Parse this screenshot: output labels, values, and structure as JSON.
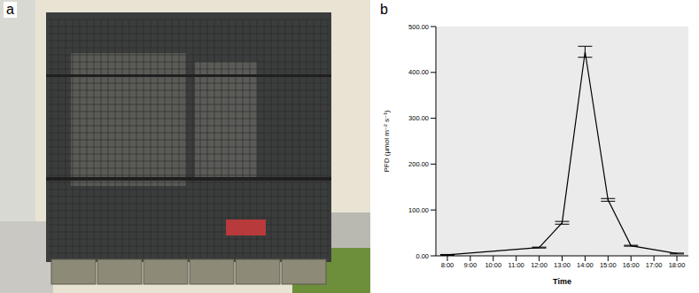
{
  "panels": [
    {
      "letter": "a"
    },
    {
      "letter": "b"
    }
  ],
  "chart_data": {
    "type": "line",
    "x_label": "Time",
    "y_label": "PFD (µmol m⁻² s⁻¹)",
    "x": [
      8,
      12,
      13,
      14,
      15,
      16,
      18
    ],
    "values": [
      2,
      18,
      72,
      445,
      122,
      22,
      5
    ],
    "errors": [
      1,
      1,
      3,
      12,
      3,
      1,
      1
    ],
    "color": "#000000",
    "marker": "none",
    "grid": false,
    "xlim": [
      7.5,
      18.5
    ],
    "xticks": [
      {
        "value": 8,
        "label": "8:00"
      },
      {
        "value": 9,
        "label": "9:00"
      },
      {
        "value": 10,
        "label": "10:00"
      },
      {
        "value": 11,
        "label": "11:00"
      },
      {
        "value": 12,
        "label": "12:00"
      },
      {
        "value": 13,
        "label": "13:00"
      },
      {
        "value": 14,
        "label": "14:00"
      },
      {
        "value": 15,
        "label": "15:00"
      },
      {
        "value": 16,
        "label": "16:00"
      },
      {
        "value": 17,
        "label": "17:00"
      },
      {
        "value": 18,
        "label": "18:00"
      }
    ],
    "ylim": [
      0,
      500
    ],
    "yticks": [
      {
        "value": 0,
        "label": "0.00"
      },
      {
        "value": 100,
        "label": "100.00"
      },
      {
        "value": 200,
        "label": "200.00"
      },
      {
        "value": 300,
        "label": "300.00"
      },
      {
        "value": 400,
        "label": "400.00"
      },
      {
        "value": 500,
        "label": "500.00"
      }
    ]
  }
}
